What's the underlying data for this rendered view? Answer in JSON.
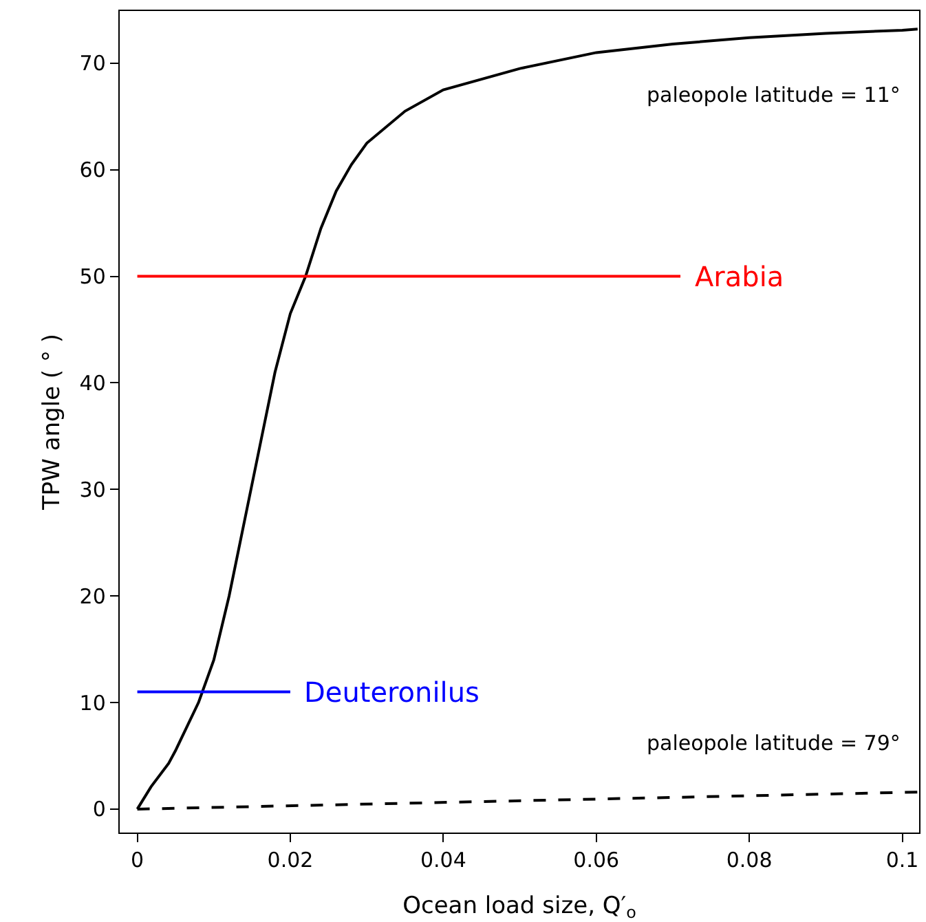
{
  "chart_data": {
    "type": "line",
    "xlabel": "Ocean load size, Q′$_{o}$",
    "ylabel": "TPW angle ( ° )",
    "xlim": [
      -0.0023,
      0.1022
    ],
    "ylim": [
      -2.2,
      74.9
    ],
    "xticks": [
      {
        "value": 0,
        "label": "0"
      },
      0.02,
      0.04,
      0.06,
      0.08,
      0.1
    ],
    "yticks": [
      0,
      10,
      20,
      30,
      40,
      50,
      60,
      70
    ],
    "grid": false,
    "legend": false,
    "marker": "none",
    "series": [
      {
        "color": "#000000",
        "line_style": "solid",
        "x": [
          0,
          0.0018,
          0.0041,
          0.005,
          0.008,
          0.01,
          0.012,
          0.014,
          0.016,
          0.018,
          0.02,
          0.022,
          0.024,
          0.026,
          0.028,
          0.03,
          0.035,
          0.04,
          0.05,
          0.06,
          0.07,
          0.08,
          0.09,
          0.1,
          0.102
        ],
        "values": [
          0,
          2.1,
          4.3,
          5.5,
          10,
          14,
          20,
          27,
          34,
          41,
          46.5,
          50,
          54.5,
          58,
          60.5,
          62.5,
          65.5,
          67.5,
          69.5,
          71,
          71.8,
          72.4,
          72.8,
          73.1,
          73.2
        ]
      },
      {
        "color": "#000000",
        "line_style": "dashed",
        "x": [
          0,
          0.102
        ],
        "values": [
          0,
          1.6
        ]
      },
      {
        "name": "Arabia",
        "color": "#ff0000",
        "line_style": "solid",
        "x": [
          0,
          0.071
        ],
        "values": [
          50,
          50
        ]
      },
      {
        "name": "Deuteronilus",
        "color": "#0000ff",
        "line_style": "solid",
        "x": [
          0,
          0.02
        ],
        "values": [
          11,
          11
        ]
      }
    ],
    "annotations": [
      "paleopole latitude = 11°",
      "paleopole latitude = 79°"
    ]
  }
}
